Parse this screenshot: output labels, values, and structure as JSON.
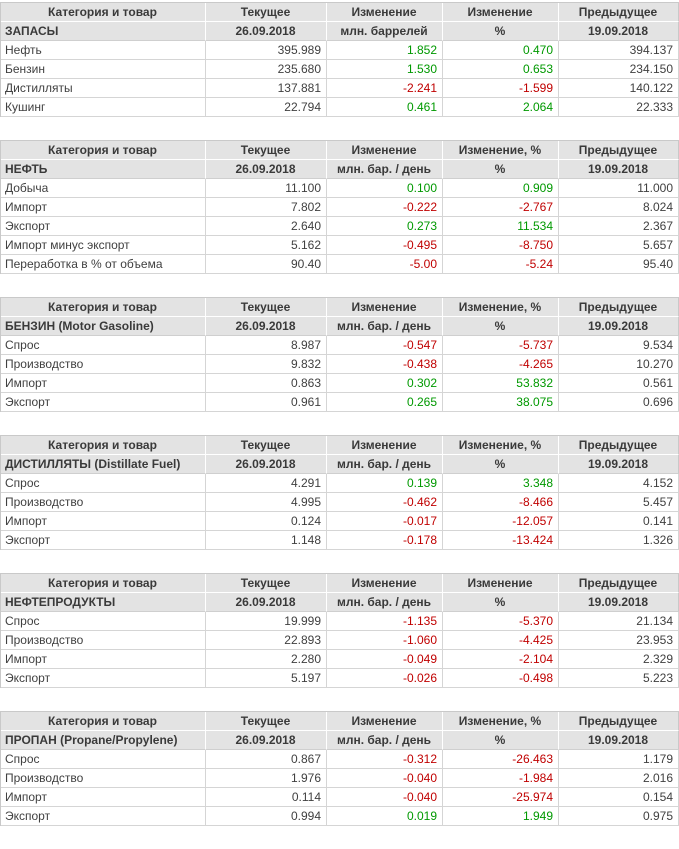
{
  "colors": {
    "positive_change": "#009900",
    "negative_change": "#c00000",
    "header_background": "#e3e3e3",
    "text": "#404040"
  },
  "dates": {
    "current": "26.09.2018",
    "previous": "19.09.2018"
  },
  "tables": [
    {
      "name": "inventories",
      "header": [
        "Категория и товар",
        "Текущее",
        "Изменение",
        "Изменение",
        "Предыдущее"
      ],
      "subheader": [
        "ЗАПАСЫ",
        "26.09.2018",
        "млн. баррелей",
        "%",
        "19.09.2018"
      ],
      "rows": [
        [
          "Нефть",
          "395.989",
          "1.852",
          "0.470",
          "394.137"
        ],
        [
          "Бензин",
          "235.680",
          "1.530",
          "0.653",
          "234.150"
        ],
        [
          "Дистилляты",
          "137.881",
          "-2.241",
          "-1.599",
          "140.122"
        ],
        [
          "Кушинг",
          "22.794",
          "0.461",
          "2.064",
          "22.333"
        ]
      ]
    },
    {
      "name": "crude-oil",
      "header": [
        "Категория и товар",
        "Текущее",
        "Изменение",
        "Изменение, %",
        "Предыдущее"
      ],
      "subheader": [
        "НЕФТЬ",
        "26.09.2018",
        "млн. бар. / день",
        "%",
        "19.09.2018"
      ],
      "rows": [
        [
          "Добыча",
          "11.100",
          "0.100",
          "0.909",
          "11.000"
        ],
        [
          "Импорт",
          "7.802",
          "-0.222",
          "-2.767",
          "8.024"
        ],
        [
          "Экспорт",
          "2.640",
          "0.273",
          "11.534",
          "2.367"
        ],
        [
          "Импорт минус экспорт",
          "5.162",
          "-0.495",
          "-8.750",
          "5.657"
        ],
        [
          "Переработка в % от объема",
          "90.40",
          "-5.00",
          "-5.24",
          "95.40"
        ]
      ]
    },
    {
      "name": "gasoline",
      "header": [
        "Категория и товар",
        "Текущее",
        "Изменение",
        "Изменение, %",
        "Предыдущее"
      ],
      "subheader": [
        "БЕНЗИН (Motor Gasoline)",
        "26.09.2018",
        "млн. бар. / день",
        "%",
        "19.09.2018"
      ],
      "rows": [
        [
          "Спрос",
          "8.987",
          "-0.547",
          "-5.737",
          "9.534"
        ],
        [
          "Производство",
          "9.832",
          "-0.438",
          "-4.265",
          "10.270"
        ],
        [
          "Импорт",
          "0.863",
          "0.302",
          "53.832",
          "0.561"
        ],
        [
          "Экспорт",
          "0.961",
          "0.265",
          "38.075",
          "0.696"
        ]
      ]
    },
    {
      "name": "distillates",
      "header": [
        "Категория и товар",
        "Текущее",
        "Изменение",
        "Изменение, %",
        "Предыдущее"
      ],
      "subheader": [
        "ДИСТИЛЛЯТЫ (Distillate Fuel)",
        "26.09.2018",
        "млн. бар. / день",
        "%",
        "19.09.2018"
      ],
      "rows": [
        [
          "Спрос",
          "4.291",
          "0.139",
          "3.348",
          "4.152"
        ],
        [
          "Производство",
          "4.995",
          "-0.462",
          "-8.466",
          "5.457"
        ],
        [
          "Импорт",
          "0.124",
          "-0.017",
          "-12.057",
          "0.141"
        ],
        [
          "Экспорт",
          "1.148",
          "-0.178",
          "-13.424",
          "1.326"
        ]
      ]
    },
    {
      "name": "petroleum-products",
      "header": [
        "Категория и товар",
        "Текущее",
        "Изменение",
        "Изменение",
        "Предыдущее"
      ],
      "subheader": [
        "НЕФТЕПРОДУКТЫ",
        "26.09.2018",
        "млн. бар. / день",
        "%",
        "19.09.2018"
      ],
      "rows": [
        [
          "Спрос",
          "19.999",
          "-1.135",
          "-5.370",
          "21.134"
        ],
        [
          "Производство",
          "22.893",
          "-1.060",
          "-4.425",
          "23.953"
        ],
        [
          "Импорт",
          "2.280",
          "-0.049",
          "-2.104",
          "2.329"
        ],
        [
          "Экспорт",
          "5.197",
          "-0.026",
          "-0.498",
          "5.223"
        ]
      ]
    },
    {
      "name": "propane",
      "header": [
        "Категория и товар",
        "Текущее",
        "Изменение",
        "Изменение, %",
        "Предыдущее"
      ],
      "subheader": [
        "ПРОПАН (Propane/Propylene)",
        "26.09.2018",
        "млн. бар. / день",
        "%",
        "19.09.2018"
      ],
      "rows": [
        [
          "Спрос",
          "0.867",
          "-0.312",
          "-26.463",
          "1.179"
        ],
        [
          "Производство",
          "1.976",
          "-0.040",
          "-1.984",
          "2.016"
        ],
        [
          "Импорт",
          "0.114",
          "-0.040",
          "-25.974",
          "0.154"
        ],
        [
          "Экспорт",
          "0.994",
          "0.019",
          "1.949",
          "0.975"
        ]
      ]
    }
  ]
}
